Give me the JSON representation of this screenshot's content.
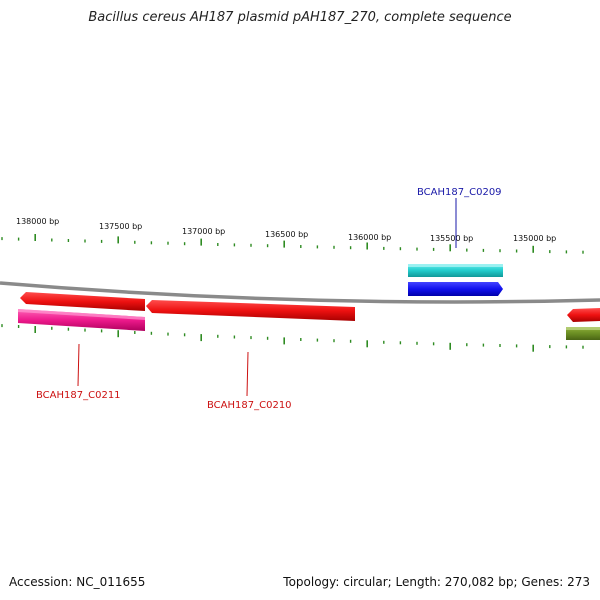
{
  "title": "Bacillus cereus AH187 plasmid pAH187_270, complete sequence",
  "footer": {
    "accession": "Accession: NC_011655",
    "summary": "Topology: circular; Length: 270,082 bp; Genes: 273"
  },
  "scale": {
    "tick_color": "#2e8b22",
    "labels": [
      "138000 bp",
      "137500 bp",
      "137000 bp",
      "136500 bp",
      "136000 bp",
      "135500 bp",
      "135000 bp"
    ]
  },
  "genes": [
    {
      "id": "BCAH187_C0209",
      "label": "BCAH187_C0209",
      "color": "#1a1aa8"
    },
    {
      "id": "BCAH187_C0210",
      "label": "BCAH187_C0210",
      "color": "#cc1111"
    },
    {
      "id": "BCAH187_C0211",
      "label": "BCAH187_C0211",
      "color": "#cc1111"
    }
  ],
  "colors": {
    "backbone": "#8a8a8a",
    "red_gene": "#ee1111",
    "magenta_gene": "#ee1a8c",
    "cyan_gene": "#22cccc",
    "blue_gene": "#1111ee",
    "olive_gene": "#6b8e23"
  }
}
